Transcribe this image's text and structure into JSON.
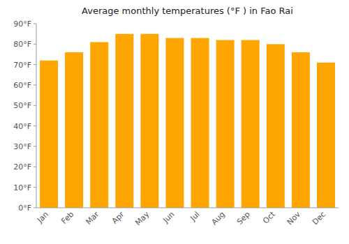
{
  "chart_data": {
    "type": "bar",
    "title": "Average monthly temperatures (°F ) in Fao Rai",
    "categories": [
      "Jan",
      "Feb",
      "Mar",
      "Apr",
      "May",
      "Jun",
      "Jul",
      "Aug",
      "Sep",
      "Oct",
      "Nov",
      "Dec"
    ],
    "values": [
      72,
      76,
      81,
      85,
      85,
      83,
      83,
      82,
      82,
      80,
      76,
      71
    ],
    "color": "#FFA500",
    "ylim": [
      0,
      90
    ],
    "yticks": [
      {
        "value": 0,
        "label": "0°F"
      },
      {
        "value": 10,
        "label": "10°F"
      },
      {
        "value": 20,
        "label": "20°F"
      },
      {
        "value": 30,
        "label": "30°F"
      },
      {
        "value": 40,
        "label": "40°F"
      },
      {
        "value": 50,
        "label": "50°F"
      },
      {
        "value": 60,
        "label": "60°F"
      },
      {
        "value": 70,
        "label": "70°F"
      },
      {
        "value": 80,
        "label": "80°F"
      },
      {
        "value": 90,
        "label": "90°F"
      }
    ],
    "grid": false
  }
}
